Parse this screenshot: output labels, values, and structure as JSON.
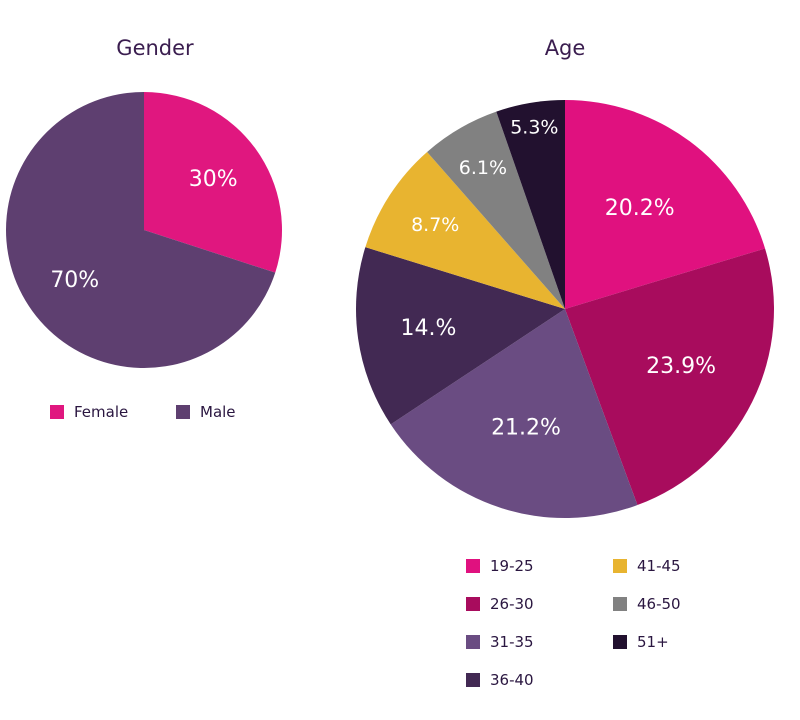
{
  "chart_data": [
    {
      "type": "pie",
      "title": "Gender",
      "slices": [
        {
          "label": "Female",
          "value": 30,
          "value_label": "30%",
          "color": "#e0177f"
        },
        {
          "label": "Male",
          "value": 70,
          "value_label": "70%",
          "color": "#5e3f70"
        }
      ],
      "legend": [
        "Female",
        "Male"
      ],
      "legend_placement": "bottom"
    },
    {
      "type": "pie",
      "title": "Age",
      "slices": [
        {
          "label": "19-25",
          "value": 20.2,
          "value_label": "20.2%",
          "color": "#e0117f"
        },
        {
          "label": "26-30",
          "value": 23.9,
          "value_label": "23.9%",
          "color": "#a80c5d"
        },
        {
          "label": "31-35",
          "value": 21.2,
          "value_label": "21.2%",
          "color": "#6a4c82"
        },
        {
          "label": "36-40",
          "value": 14.0,
          "value_label": "14.%",
          "color": "#422953"
        },
        {
          "label": "41-45",
          "value": 8.7,
          "value_label": "8.7%",
          "color": "#e8b430"
        },
        {
          "label": "46-50",
          "value": 6.1,
          "value_label": "6.1%",
          "color": "#818181"
        },
        {
          "label": "51+",
          "value": 5.3,
          "value_label": "5.3%",
          "color": "#22112f"
        }
      ],
      "legend": [
        "19-25",
        "26-30",
        "31-35",
        "36-40",
        "41-45",
        "46-50",
        "51+"
      ],
      "legend_placement": "bottom"
    }
  ]
}
